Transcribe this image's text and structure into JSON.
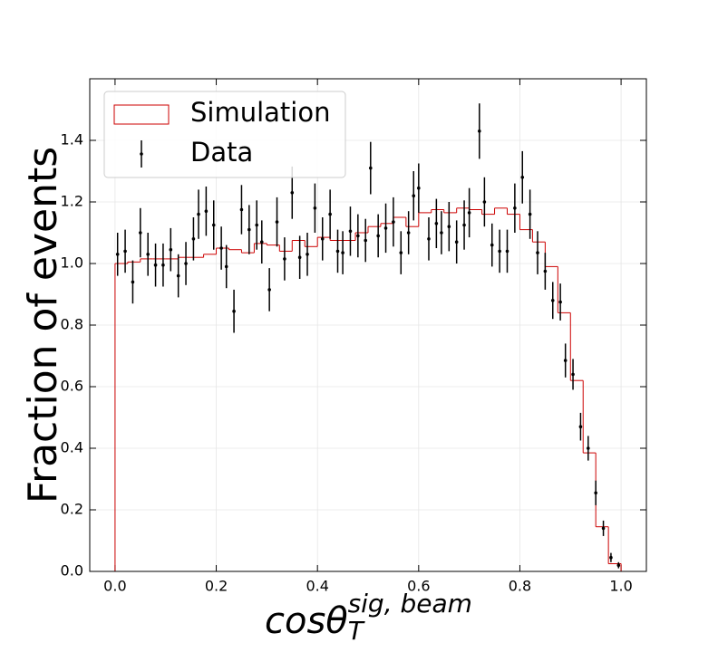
{
  "chart_data": {
    "type": "histogram",
    "xlabel": {
      "base": "cosθ",
      "sub": "T",
      "sup": "sig, beam"
    },
    "ylabel": "Fraction of events",
    "xlim": [
      -0.05,
      1.05
    ],
    "ylim": [
      0,
      1.6
    ],
    "xticks": [
      {
        "value": 0,
        "label": "0.0"
      },
      {
        "value": 0.2,
        "label": "0.2"
      },
      {
        "value": 0.4,
        "label": "0.4"
      },
      {
        "value": 0.6,
        "label": "0.6"
      },
      {
        "value": 0.8,
        "label": "0.8"
      },
      {
        "value": 1,
        "label": "1.0"
      }
    ],
    "yticks": [
      {
        "value": 0,
        "label": "0.0"
      },
      {
        "value": 0.2,
        "label": "0.2"
      },
      {
        "value": 0.4,
        "label": "0.4"
      },
      {
        "value": 0.6,
        "label": "0.6"
      },
      {
        "value": 0.8,
        "label": "0.8"
      },
      {
        "value": 1,
        "label": "1.0"
      },
      {
        "value": 1.2,
        "label": "1.2"
      },
      {
        "value": 1.4,
        "label": "1.4"
      }
    ],
    "grid": true,
    "legend": "upper left",
    "series": [
      {
        "name": "Simulation",
        "type": "step",
        "color": "#cc0000",
        "bins": [
          0,
          0.025,
          0.05,
          0.075,
          0.1,
          0.125,
          0.15,
          0.175,
          0.2,
          0.225,
          0.25,
          0.275,
          0.3,
          0.325,
          0.35,
          0.375,
          0.4,
          0.425,
          0.45,
          0.475,
          0.5,
          0.525,
          0.55,
          0.575,
          0.6,
          0.625,
          0.65,
          0.675,
          0.7,
          0.725,
          0.75,
          0.775,
          0.8,
          0.825,
          0.85,
          0.875,
          0.9,
          0.925,
          0.95,
          0.975,
          1.0
        ],
        "values": [
          1.0,
          1.005,
          1.015,
          1.015,
          1.015,
          1.02,
          1.02,
          1.03,
          1.05,
          1.045,
          1.035,
          1.065,
          1.06,
          1.04,
          1.075,
          1.055,
          1.085,
          1.075,
          1.075,
          1.1,
          1.12,
          1.13,
          1.15,
          1.12,
          1.165,
          1.175,
          1.165,
          1.18,
          1.175,
          1.16,
          1.18,
          1.16,
          1.11,
          1.07,
          0.99,
          0.84,
          0.62,
          0.385,
          0.145,
          0.025
        ]
      },
      {
        "name": "Data",
        "type": "errorbar",
        "color": "#000000",
        "x": [
          0.005,
          0.02,
          0.035,
          0.05,
          0.065,
          0.08,
          0.095,
          0.11,
          0.125,
          0.14,
          0.155,
          0.165,
          0.18,
          0.195,
          0.21,
          0.22,
          0.235,
          0.25,
          0.265,
          0.28,
          0.29,
          0.305,
          0.32,
          0.335,
          0.35,
          0.365,
          0.38,
          0.395,
          0.41,
          0.425,
          0.44,
          0.45,
          0.465,
          0.48,
          0.495,
          0.505,
          0.52,
          0.535,
          0.55,
          0.565,
          0.58,
          0.59,
          0.6,
          0.62,
          0.635,
          0.645,
          0.66,
          0.675,
          0.69,
          0.7,
          0.72,
          0.73,
          0.745,
          0.76,
          0.775,
          0.79,
          0.805,
          0.82,
          0.835,
          0.85,
          0.865,
          0.88,
          0.89,
          0.905,
          0.92,
          0.935,
          0.95,
          0.965,
          0.98,
          0.995
        ],
        "values": [
          1.03,
          1.04,
          0.94,
          1.1,
          1.03,
          0.995,
          0.995,
          1.045,
          0.96,
          1.0,
          1.08,
          1.16,
          1.17,
          1.125,
          1.05,
          0.99,
          0.845,
          1.175,
          1.11,
          1.125,
          1.07,
          0.915,
          1.135,
          1.015,
          1.23,
          1.02,
          1.03,
          1.18,
          1.08,
          1.16,
          1.04,
          1.035,
          1.105,
          1.09,
          1.075,
          1.31,
          1.09,
          1.115,
          1.135,
          1.035,
          1.1,
          1.22,
          1.245,
          1.08,
          1.13,
          1.1,
          1.12,
          1.07,
          1.125,
          1.165,
          1.43,
          1.2,
          1.06,
          1.04,
          1.04,
          1.18,
          1.28,
          1.16,
          1.035,
          0.975,
          0.88,
          0.875,
          0.685,
          0.64,
          0.47,
          0.4,
          0.255,
          0.14,
          0.045,
          0.02
        ],
        "errors": [
          0.07,
          0.07,
          0.07,
          0.08,
          0.07,
          0.07,
          0.07,
          0.07,
          0.07,
          0.07,
          0.07,
          0.08,
          0.08,
          0.08,
          0.07,
          0.07,
          0.07,
          0.08,
          0.08,
          0.08,
          0.07,
          0.07,
          0.08,
          0.07,
          0.085,
          0.07,
          0.07,
          0.08,
          0.07,
          0.08,
          0.07,
          0.07,
          0.08,
          0.07,
          0.07,
          0.085,
          0.07,
          0.08,
          0.08,
          0.07,
          0.07,
          0.08,
          0.08,
          0.07,
          0.08,
          0.07,
          0.08,
          0.07,
          0.08,
          0.08,
          0.09,
          0.08,
          0.07,
          0.07,
          0.07,
          0.08,
          0.085,
          0.08,
          0.07,
          0.06,
          0.06,
          0.06,
          0.055,
          0.05,
          0.045,
          0.04,
          0.04,
          0.025,
          0.015,
          0.01
        ]
      }
    ]
  }
}
